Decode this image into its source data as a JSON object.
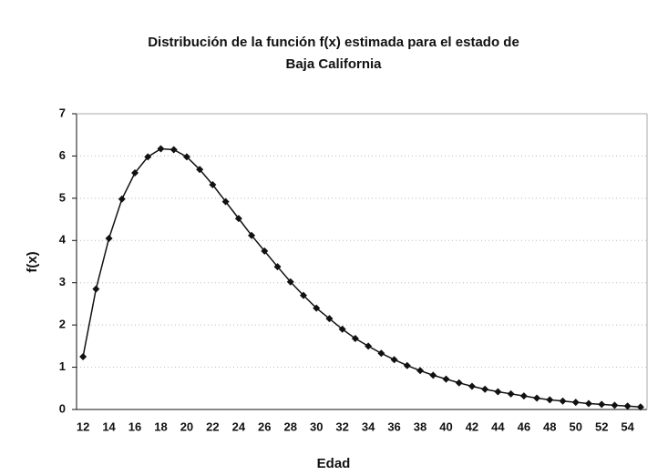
{
  "chart_data": {
    "type": "line",
    "title": [
      "Distribución de la función f(x) estimada para el estado de",
      "Baja California"
    ],
    "x_label": "Edad",
    "y_label": "f(x)",
    "categories": [
      12,
      null,
      14,
      null,
      16,
      null,
      18,
      null,
      20,
      null,
      22,
      null,
      24,
      null,
      26,
      null,
      28,
      null,
      30,
      null,
      32,
      null,
      34,
      null,
      36,
      null,
      38,
      null,
      40,
      null,
      42,
      null,
      44,
      null,
      46,
      null,
      48,
      null,
      50,
      null,
      52,
      null,
      54,
      null
    ],
    "values": [
      1.25,
      2.85,
      4.05,
      4.98,
      5.6,
      5.98,
      6.17,
      6.15,
      5.98,
      5.68,
      5.32,
      4.92,
      4.52,
      4.12,
      3.75,
      3.38,
      3.02,
      2.7,
      2.4,
      2.15,
      1.9,
      1.68,
      1.5,
      1.33,
      1.18,
      1.04,
      0.92,
      0.81,
      0.72,
      0.63,
      0.55,
      0.48,
      0.42,
      0.37,
      0.32,
      0.27,
      0.23,
      0.2,
      0.17,
      0.14,
      0.12,
      0.1,
      0.08,
      0.06
    ],
    "color": "#111111",
    "ylim": [
      0,
      7
    ],
    "yticks": [
      0,
      1,
      2,
      3,
      4,
      5,
      6,
      7
    ],
    "grid": true
  }
}
